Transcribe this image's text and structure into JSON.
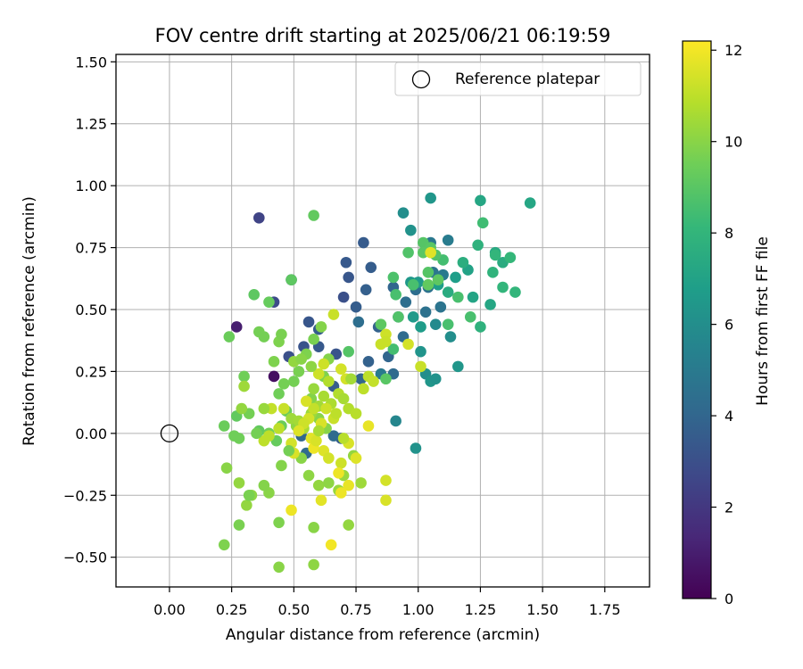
{
  "chart_data": {
    "type": "scatter",
    "title": "FOV centre drift starting at 2025/06/21 06:19:59",
    "xlabel": "Angular distance from reference (arcmin)",
    "ylabel": "Rotation from reference (arcmin)",
    "xlim": [
      -0.215,
      1.93
    ],
    "ylim": [
      -0.62,
      1.53
    ],
    "xticks": [
      0.0,
      0.25,
      0.5,
      0.75,
      1.0,
      1.25,
      1.5,
      1.75
    ],
    "yticks": [
      -0.5,
      -0.25,
      0.0,
      0.25,
      0.5,
      0.75,
      1.0,
      1.25,
      1.5
    ],
    "xtick_labels": [
      "0.00",
      "0.25",
      "0.50",
      "0.75",
      "1.00",
      "1.25",
      "1.50",
      "1.75"
    ],
    "ytick_labels": [
      "−0.50",
      "−0.25",
      "0.00",
      "0.25",
      "0.50",
      "0.75",
      "1.00",
      "1.25",
      "1.50"
    ],
    "grid": true,
    "legend": {
      "position": "top-right",
      "entries": [
        "Reference platepar"
      ]
    },
    "colorbar": {
      "label": "Hours from first FF file",
      "range": [
        0,
        12.2
      ],
      "ticks": [
        0,
        2,
        4,
        6,
        8,
        10,
        12
      ],
      "colormap": "viridis",
      "colors": [
        "#440154",
        "#482878",
        "#3e4989",
        "#31688e",
        "#26828e",
        "#1f9e89",
        "#35b779",
        "#6ece58",
        "#b5de2b",
        "#fde725"
      ]
    },
    "reference_point": {
      "x": 0.0,
      "y": 0.0
    },
    "points": [
      [
        0.42,
        0.23,
        0.5
      ],
      [
        0.27,
        0.43,
        1.0
      ],
      [
        0.36,
        0.87,
        2.5
      ],
      [
        0.42,
        0.53,
        2.8
      ],
      [
        0.49,
        0.62,
        3.0
      ],
      [
        0.48,
        0.31,
        3.0
      ],
      [
        0.54,
        0.35,
        3.2
      ],
      [
        0.56,
        0.45,
        3.3
      ],
      [
        0.6,
        0.35,
        3.4
      ],
      [
        0.66,
        0.19,
        3.5
      ],
      [
        0.67,
        0.32,
        3.2
      ],
      [
        0.69,
        -0.02,
        3.5
      ],
      [
        0.72,
        0.63,
        3.3
      ],
      [
        0.7,
        0.55,
        3.0
      ],
      [
        0.71,
        0.69,
        3.4
      ],
      [
        0.78,
        0.77,
        3.5
      ],
      [
        0.75,
        0.51,
        3.6
      ],
      [
        0.79,
        0.58,
        3.7
      ],
      [
        0.81,
        0.67,
        3.6
      ],
      [
        0.8,
        0.29,
        3.8
      ],
      [
        0.84,
        0.43,
        3.8
      ],
      [
        0.88,
        0.31,
        4.0
      ],
      [
        0.9,
        0.59,
        4.0
      ],
      [
        0.9,
        0.24,
        4.2
      ],
      [
        0.92,
        0.47,
        4.2
      ],
      [
        0.94,
        0.39,
        4.3
      ],
      [
        0.95,
        0.53,
        4.4
      ],
      [
        0.99,
        0.58,
        4.4
      ],
      [
        1.03,
        0.49,
        4.6
      ],
      [
        1.04,
        0.59,
        4.6
      ],
      [
        1.06,
        0.65,
        4.8
      ],
      [
        1.05,
        0.77,
        4.9
      ],
      [
        1.09,
        0.51,
        4.7
      ],
      [
        1.1,
        0.64,
        5.0
      ],
      [
        1.12,
        0.78,
        5.1
      ],
      [
        0.76,
        0.45,
        4.4
      ],
      [
        0.77,
        0.22,
        4.0
      ],
      [
        0.66,
        -0.01,
        4.2
      ],
      [
        0.6,
        0.42,
        3.6
      ],
      [
        0.53,
        -0.01,
        4.0
      ],
      [
        0.55,
        -0.08,
        4.2
      ],
      [
        0.85,
        0.24,
        5.0
      ],
      [
        0.91,
        0.05,
        5.6
      ],
      [
        0.99,
        -0.06,
        6.2
      ],
      [
        0.94,
        0.89,
        6.0
      ],
      [
        0.97,
        0.82,
        6.2
      ],
      [
        1.05,
        0.95,
        6.4
      ],
      [
        1.07,
        0.44,
        5.8
      ],
      [
        1.13,
        0.39,
        6.0
      ],
      [
        1.16,
        0.27,
        6.4
      ],
      [
        0.97,
        0.61,
        6.5
      ],
      [
        1.0,
        0.61,
        6.6
      ],
      [
        0.98,
        0.47,
        6.6
      ],
      [
        1.01,
        0.33,
        6.3
      ],
      [
        1.03,
        0.24,
        6.0
      ],
      [
        1.05,
        0.21,
        6.4
      ],
      [
        1.07,
        0.22,
        6.2
      ],
      [
        1.01,
        0.43,
        6.7
      ],
      [
        1.08,
        0.6,
        6.8
      ],
      [
        1.15,
        0.63,
        6.8
      ],
      [
        1.2,
        0.66,
        7.0
      ],
      [
        1.22,
        0.55,
        7.1
      ],
      [
        1.25,
        0.94,
        7.2
      ],
      [
        1.29,
        0.52,
        7.2
      ],
      [
        1.31,
        0.73,
        7.4
      ],
      [
        1.34,
        0.69,
        7.5
      ],
      [
        1.45,
        0.93,
        7.2
      ],
      [
        1.12,
        0.57,
        7.5
      ],
      [
        1.18,
        0.69,
        7.6
      ],
      [
        1.24,
        0.76,
        7.8
      ],
      [
        1.3,
        0.65,
        7.9
      ],
      [
        1.25,
        0.43,
        7.8
      ],
      [
        1.34,
        0.59,
        8.0
      ],
      [
        1.39,
        0.57,
        8.0
      ],
      [
        1.37,
        0.71,
        8.1
      ],
      [
        1.31,
        0.72,
        8.0
      ],
      [
        1.26,
        0.85,
        8.4
      ],
      [
        1.21,
        0.47,
        8.6
      ],
      [
        1.16,
        0.55,
        8.6
      ],
      [
        1.12,
        0.44,
        8.6
      ],
      [
        1.1,
        0.7,
        8.5
      ],
      [
        1.07,
        0.72,
        8.8
      ],
      [
        1.04,
        0.65,
        8.9
      ],
      [
        1.02,
        0.77,
        8.9
      ],
      [
        1.02,
        0.73,
        9.0
      ],
      [
        1.05,
        0.75,
        9.0
      ],
      [
        1.08,
        0.62,
        9.1
      ],
      [
        1.04,
        0.6,
        9.2
      ],
      [
        0.98,
        0.6,
        8.6
      ],
      [
        0.96,
        0.73,
        8.8
      ],
      [
        0.9,
        0.63,
        8.7
      ],
      [
        0.91,
        0.56,
        8.6
      ],
      [
        0.92,
        0.47,
        8.8
      ],
      [
        0.9,
        0.34,
        8.5
      ],
      [
        0.87,
        0.22,
        9.0
      ],
      [
        0.85,
        0.44,
        9.1
      ],
      [
        0.72,
        0.33,
        8.9
      ],
      [
        0.58,
        0.88,
        9.2
      ],
      [
        0.49,
        0.62,
        9.1
      ],
      [
        0.34,
        0.56,
        9.1
      ],
      [
        0.4,
        0.53,
        9.3
      ],
      [
        0.3,
        0.23,
        9.5
      ],
      [
        0.24,
        0.39,
        9.4
      ],
      [
        0.22,
        0.03,
        9.4
      ],
      [
        0.27,
        0.07,
        9.2
      ],
      [
        0.26,
        -0.01,
        9.5
      ],
      [
        0.28,
        -0.02,
        9.5
      ],
      [
        0.32,
        0.08,
        9.6
      ],
      [
        0.36,
        0.01,
        9.2
      ],
      [
        0.4,
        0.0,
        9.5
      ],
      [
        0.43,
        -0.03,
        9.3
      ],
      [
        0.45,
        0.03,
        9.4
      ],
      [
        0.47,
        0.09,
        9.4
      ],
      [
        0.44,
        0.16,
        9.5
      ],
      [
        0.46,
        0.2,
        9.6
      ],
      [
        0.5,
        0.21,
        9.6
      ],
      [
        0.52,
        0.25,
        9.7
      ],
      [
        0.55,
        0.32,
        9.8
      ],
      [
        0.58,
        0.38,
        9.7
      ],
      [
        0.61,
        0.43,
        9.9
      ],
      [
        0.64,
        0.3,
        9.9
      ],
      [
        0.62,
        0.23,
        9.8
      ],
      [
        0.57,
        0.14,
        9.9
      ],
      [
        0.6,
        0.06,
        10.0
      ],
      [
        0.63,
        0.02,
        10.0
      ],
      [
        0.51,
        0.03,
        10.1
      ],
      [
        0.53,
        -0.1,
        10.0
      ],
      [
        0.56,
        -0.17,
        10.1
      ],
      [
        0.6,
        -0.21,
        10.2
      ],
      [
        0.64,
        -0.2,
        10.1
      ],
      [
        0.68,
        -0.23,
        10.3
      ],
      [
        0.7,
        -0.17,
        10.3
      ],
      [
        0.74,
        -0.09,
        10.2
      ],
      [
        0.77,
        -0.2,
        10.4
      ],
      [
        0.72,
        -0.37,
        10.2
      ],
      [
        0.58,
        -0.38,
        10.0
      ],
      [
        0.58,
        -0.53,
        10.1
      ],
      [
        0.44,
        -0.54,
        10.0
      ],
      [
        0.44,
        -0.36,
        9.8
      ],
      [
        0.45,
        -0.13,
        9.9
      ],
      [
        0.4,
        -0.24,
        10.0
      ],
      [
        0.38,
        -0.21,
        9.9
      ],
      [
        0.33,
        -0.25,
        10.1
      ],
      [
        0.31,
        -0.29,
        10.2
      ],
      [
        0.28,
        -0.2,
        10.2
      ],
      [
        0.28,
        -0.37,
        9.7
      ],
      [
        0.23,
        -0.14,
        10.0
      ],
      [
        0.22,
        -0.45,
        9.8
      ],
      [
        0.29,
        0.1,
        10.2
      ],
      [
        0.3,
        0.19,
        10.4
      ],
      [
        0.36,
        0.41,
        9.6
      ],
      [
        0.38,
        0.39,
        9.6
      ],
      [
        0.42,
        0.29,
        9.8
      ],
      [
        0.44,
        0.37,
        9.8
      ],
      [
        0.45,
        0.4,
        9.7
      ],
      [
        0.49,
        0.06,
        10.4
      ],
      [
        0.52,
        0.05,
        10.5
      ],
      [
        0.54,
        0.02,
        10.6
      ],
      [
        0.57,
        0.08,
        10.4
      ],
      [
        0.6,
        0.11,
        10.5
      ],
      [
        0.62,
        0.15,
        10.6
      ],
      [
        0.65,
        0.12,
        10.7
      ],
      [
        0.68,
        0.16,
        10.8
      ],
      [
        0.7,
        0.14,
        10.6
      ],
      [
        0.72,
        0.1,
        10.8
      ],
      [
        0.75,
        0.08,
        10.9
      ],
      [
        0.78,
        0.18,
        11.0
      ],
      [
        0.8,
        0.23,
        11.0
      ],
      [
        0.82,
        0.21,
        11.1
      ],
      [
        0.85,
        0.36,
        11.2
      ],
      [
        0.87,
        0.4,
        11.3
      ],
      [
        0.87,
        0.37,
        11.2
      ],
      [
        0.96,
        0.36,
        11.4
      ],
      [
        1.05,
        0.73,
        11.6
      ],
      [
        1.01,
        0.27,
        11.2
      ],
      [
        0.66,
        0.48,
        11.2
      ],
      [
        0.62,
        0.28,
        11.3
      ],
      [
        0.6,
        0.24,
        11.3
      ],
      [
        0.69,
        0.26,
        11.4
      ],
      [
        0.71,
        0.22,
        11.4
      ],
      [
        0.66,
        0.06,
        11.2
      ],
      [
        0.63,
        0.1,
        11.3
      ],
      [
        0.61,
        0.04,
        11.5
      ],
      [
        0.58,
        0.1,
        11.1
      ],
      [
        0.55,
        0.13,
        11.5
      ],
      [
        0.56,
        0.06,
        11.4
      ],
      [
        0.54,
        0.04,
        11.3
      ],
      [
        0.52,
        0.01,
        11.6
      ],
      [
        0.49,
        -0.04,
        11.4
      ],
      [
        0.5,
        -0.08,
        11.5
      ],
      [
        0.46,
        0.1,
        11.2
      ],
      [
        0.41,
        0.1,
        11.1
      ],
      [
        0.44,
        0.02,
        11.0
      ],
      [
        0.4,
        -0.01,
        11.0
      ],
      [
        0.38,
        -0.03,
        11.0
      ],
      [
        0.57,
        -0.02,
        11.7
      ],
      [
        0.58,
        -0.06,
        11.9
      ],
      [
        0.59,
        -0.03,
        11.5
      ],
      [
        0.62,
        -0.07,
        11.6
      ],
      [
        0.64,
        -0.1,
        11.4
      ],
      [
        0.69,
        -0.12,
        11.3
      ],
      [
        0.72,
        -0.04,
        11.5
      ],
      [
        0.75,
        -0.1,
        11.6
      ],
      [
        0.8,
        0.03,
        11.8
      ],
      [
        0.87,
        -0.19,
        11.4
      ],
      [
        0.87,
        -0.27,
        11.5
      ],
      [
        0.72,
        -0.21,
        11.8
      ],
      [
        0.68,
        -0.16,
        11.9
      ],
      [
        0.69,
        -0.24,
        11.9
      ],
      [
        0.65,
        -0.45,
        12.0
      ],
      [
        0.61,
        -0.27,
        11.7
      ],
      [
        0.49,
        -0.31,
        11.9
      ],
      [
        0.58,
        0.18,
        10.3
      ],
      [
        0.6,
        0.01,
        10.6
      ],
      [
        0.64,
        0.21,
        10.8
      ],
      [
        0.67,
        0.08,
        11.0
      ],
      [
        0.7,
        -0.02,
        10.9
      ],
      [
        0.73,
        0.22,
        10.5
      ],
      [
        0.38,
        0.1,
        10.3
      ],
      [
        0.5,
        0.29,
        10.2
      ],
      [
        0.53,
        0.3,
        10.0
      ],
      [
        0.57,
        0.27,
        10.1
      ],
      [
        0.32,
        -0.25,
        9.7
      ],
      [
        0.35,
        0.0,
        9.6
      ],
      [
        0.48,
        -0.07,
        9.6
      ]
    ]
  }
}
